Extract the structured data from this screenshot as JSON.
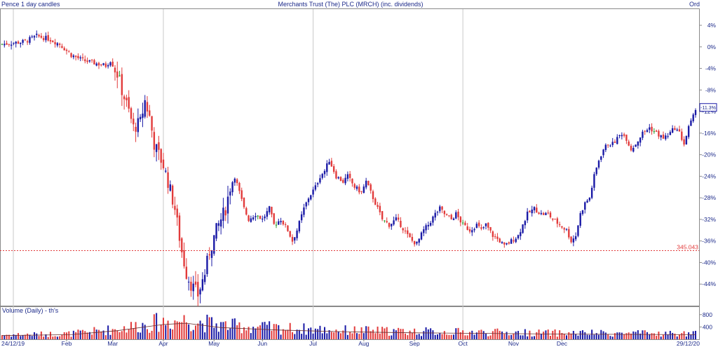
{
  "header": {
    "left": "Pence 1 day candles",
    "center": "Merchants Trust (The) PLC (MRCH)   (inc. dividends)",
    "right": "Ord"
  },
  "chart_data": {
    "type": "candlestick",
    "y_unit": "% change",
    "y_ticks": [
      "4%",
      "0%",
      "-4%",
      "-8%",
      "-12%",
      "-16%",
      "-20%",
      "-24%",
      "-28%",
      "-32%",
      "-36%",
      "-40%",
      "-44%"
    ],
    "y_tick_values": [
      4,
      0,
      -4,
      -8,
      -12,
      -16,
      -20,
      -24,
      -28,
      -32,
      -36,
      -40,
      -44
    ],
    "ylim": [
      -48,
      7
    ],
    "x_start_label": "24/12/19",
    "x_end_label": "29/12/20",
    "x_months": [
      "Feb",
      "Mar",
      "Apr",
      "May",
      "Jun",
      "Jul",
      "Aug",
      "Sep",
      "Oct",
      "Nov",
      "Dec"
    ],
    "current_value_label": "-11.3%",
    "current_value": -11.3,
    "reference_line": {
      "label": "345.043",
      "value": -37.8
    },
    "price_path": [
      [
        0,
        0.5
      ],
      [
        10,
        1
      ],
      [
        15,
        2
      ],
      [
        20,
        1.5
      ],
      [
        25,
        0.5
      ],
      [
        30,
        -1.5
      ],
      [
        35,
        -2.5
      ],
      [
        40,
        -3
      ],
      [
        45,
        -3.5
      ],
      [
        47,
        -2.5
      ],
      [
        50,
        -5
      ],
      [
        52,
        -8
      ],
      [
        55,
        -12
      ],
      [
        57,
        -15
      ],
      [
        60,
        -14
      ],
      [
        62,
        -10
      ],
      [
        64,
        -13
      ],
      [
        66,
        -18
      ],
      [
        70,
        -22
      ],
      [
        72,
        -25
      ],
      [
        75,
        -30
      ],
      [
        78,
        -38
      ],
      [
        80,
        -42
      ],
      [
        82,
        -44
      ],
      [
        85,
        -46
      ],
      [
        88,
        -42
      ],
      [
        90,
        -38
      ],
      [
        93,
        -34
      ],
      [
        95,
        -32
      ],
      [
        97,
        -30
      ],
      [
        99,
        -26
      ],
      [
        101,
        -24
      ],
      [
        103,
        -27
      ],
      [
        105,
        -30
      ],
      [
        107,
        -32
      ],
      [
        110,
        -31
      ],
      [
        113,
        -32
      ],
      [
        116,
        -30
      ],
      [
        118,
        -33
      ],
      [
        121,
        -32
      ],
      [
        124,
        -34
      ],
      [
        126,
        -36
      ],
      [
        128,
        -34
      ],
      [
        131,
        -30
      ],
      [
        133,
        -28
      ],
      [
        136,
        -26
      ],
      [
        138,
        -24
      ],
      [
        140,
        -23
      ],
      [
        142,
        -21
      ],
      [
        145,
        -24
      ],
      [
        148,
        -25
      ],
      [
        150,
        -24
      ],
      [
        153,
        -26
      ],
      [
        156,
        -27
      ],
      [
        158,
        -25
      ],
      [
        160,
        -27
      ],
      [
        163,
        -30
      ],
      [
        165,
        -32
      ],
      [
        168,
        -33
      ],
      [
        171,
        -32
      ],
      [
        173,
        -33
      ],
      [
        176,
        -35
      ],
      [
        178,
        -36
      ],
      [
        180,
        -36.5
      ],
      [
        183,
        -34
      ],
      [
        185,
        -33
      ],
      [
        188,
        -31
      ],
      [
        190,
        -30
      ],
      [
        192,
        -31
      ],
      [
        195,
        -32
      ],
      [
        197,
        -31
      ],
      [
        200,
        -33
      ],
      [
        203,
        -34
      ],
      [
        206,
        -33
      ],
      [
        208,
        -34
      ],
      [
        210,
        -33
      ],
      [
        213,
        -35
      ],
      [
        216,
        -36
      ],
      [
        218,
        -37
      ],
      [
        221,
        -36
      ],
      [
        224,
        -35
      ],
      [
        226,
        -33
      ],
      [
        228,
        -31
      ],
      [
        231,
        -30
      ],
      [
        234,
        -31
      ],
      [
        237,
        -31
      ],
      [
        239,
        -32
      ],
      [
        242,
        -33
      ],
      [
        245,
        -34
      ],
      [
        247,
        -36
      ],
      [
        249,
        -35
      ],
      [
        251,
        -31
      ],
      [
        253,
        -29
      ],
      [
        255,
        -28
      ],
      [
        257,
        -24
      ],
      [
        259,
        -21
      ],
      [
        261,
        -19
      ],
      [
        263,
        -18
      ],
      [
        265,
        -18
      ],
      [
        267,
        -17
      ],
      [
        269,
        -16
      ],
      [
        271,
        -17
      ],
      [
        273,
        -19
      ],
      [
        275,
        -18
      ],
      [
        278,
        -16
      ],
      [
        281,
        -15
      ],
      [
        284,
        -16
      ],
      [
        287,
        -17
      ],
      [
        290,
        -16
      ],
      [
        292,
        -15
      ],
      [
        294,
        -16
      ],
      [
        296,
        -18
      ],
      [
        298,
        -15
      ],
      [
        300,
        -13
      ],
      [
        301,
        -11.3
      ]
    ],
    "volume_title": "Volume (Daily) - th's",
    "volume_ticks": [
      "800",
      "400"
    ],
    "volume_tick_values": [
      800,
      400
    ],
    "volume_max": 1000,
    "volume_avg_path": [
      [
        0,
        120
      ],
      [
        30,
        150
      ],
      [
        50,
        280
      ],
      [
        70,
        480
      ],
      [
        80,
        520
      ],
      [
        95,
        380
      ],
      [
        120,
        300
      ],
      [
        150,
        240
      ],
      [
        180,
        210
      ],
      [
        210,
        190
      ],
      [
        240,
        170
      ],
      [
        270,
        160
      ],
      [
        301,
        150
      ]
    ]
  },
  "colors": {
    "up": "#1a1aa6",
    "down": "#e23b3b",
    "doji": "#2a9a2a",
    "grid": "#c8c8c8",
    "ref_line": "#e23b3b",
    "text": "#1c2a8a"
  }
}
